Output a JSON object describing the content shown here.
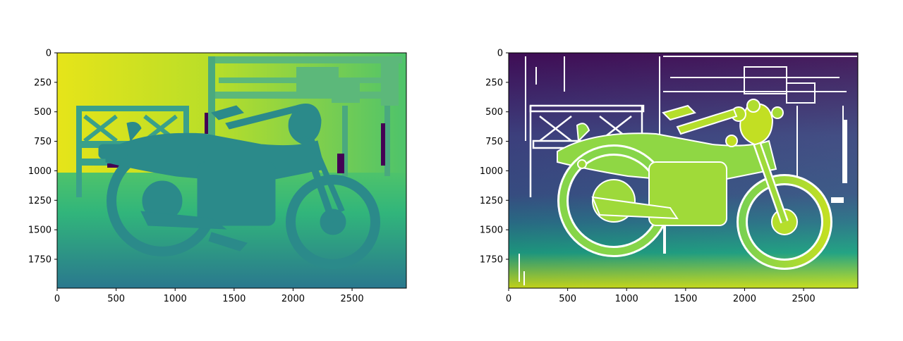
{
  "figure": {
    "type": "image pair",
    "colormap": "viridis",
    "background": "#ffffff",
    "axis_color": "#000000"
  },
  "chart_data": [
    {
      "type": "heatmap",
      "name": "left-panel",
      "colormap": "viridis",
      "xlim": [
        0,
        2960
      ],
      "ylim": [
        1995,
        0
      ],
      "xticks": [
        0,
        500,
        1000,
        1500,
        2000,
        2500
      ],
      "yticks": [
        0,
        250,
        500,
        750,
        1000,
        1250,
        1500,
        1750
      ],
      "colors": {
        "upper_background_left": "#e6e419",
        "upper_background_right": "#4ec36b",
        "floor_near": "#2a788e",
        "floor_far": "#31b57b",
        "motorcycle": "#2b8a8a",
        "bench": "#3aa08a",
        "shelf": "#5cb87a",
        "invalid": "#440154"
      },
      "content": "motorcycle in front of a bench and shelf"
    },
    {
      "type": "heatmap",
      "name": "right-panel",
      "colormap": "viridis",
      "xlim": [
        0,
        2960
      ],
      "ylim": [
        1995,
        0
      ],
      "xticks": [
        0,
        500,
        1000,
        1500,
        2000,
        2500
      ],
      "yticks": [
        0,
        250,
        500,
        750,
        1000,
        1250,
        1500,
        1750
      ],
      "colors": {
        "top_background": "#440d5c",
        "mid_background": "#3b528b",
        "floor_near": "#d2e21b",
        "floor_mid": "#1fa187",
        "motorcycle": "#8fd744",
        "wheel_front": "#b5de2b",
        "missing": "#ffffff"
      },
      "content": "motorcycle in front of a bench and shelf"
    }
  ]
}
